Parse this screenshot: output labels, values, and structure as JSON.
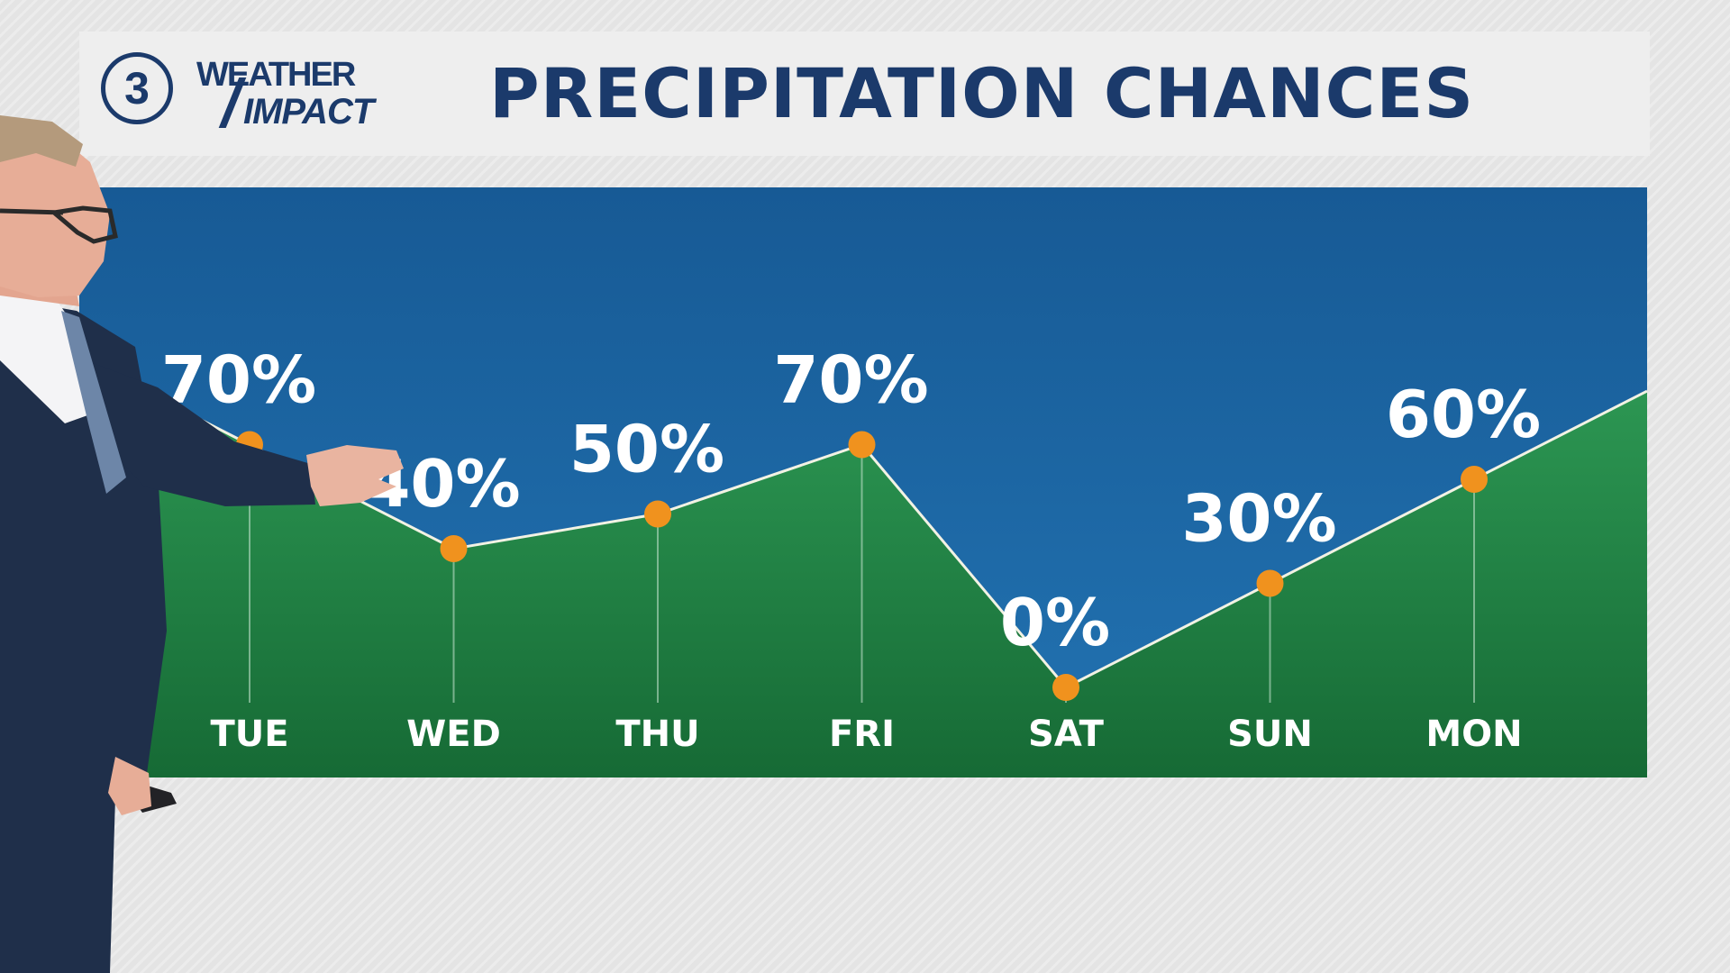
{
  "header": {
    "logo_number": "3",
    "logo_line1": "WEATHER",
    "logo_line2": "IMPACT",
    "title": "PRECIPITATION CHANCES"
  },
  "colors": {
    "header_text": "#1b3a6b",
    "sky_top": "#175a95",
    "sky_bottom": "#2273b2",
    "area_top": "#2e9a55",
    "area_bottom": "#166a35",
    "marker": "#f0921e",
    "line": "#f2f2e4"
  },
  "chart_data": {
    "type": "area",
    "categories": [
      "TUE",
      "WED",
      "THU",
      "FRI",
      "SAT",
      "SUN",
      "MON"
    ],
    "values": [
      70,
      40,
      50,
      70,
      0,
      30,
      60
    ],
    "data_labels": [
      "70%",
      "40%",
      "50%",
      "70%",
      "0%",
      "30%",
      "60%"
    ],
    "unit": "%",
    "title": "PRECIPITATION CHANCES",
    "xlabel": "",
    "ylabel": "",
    "ylim": [
      0,
      100
    ],
    "grid": false,
    "legend": "none"
  }
}
